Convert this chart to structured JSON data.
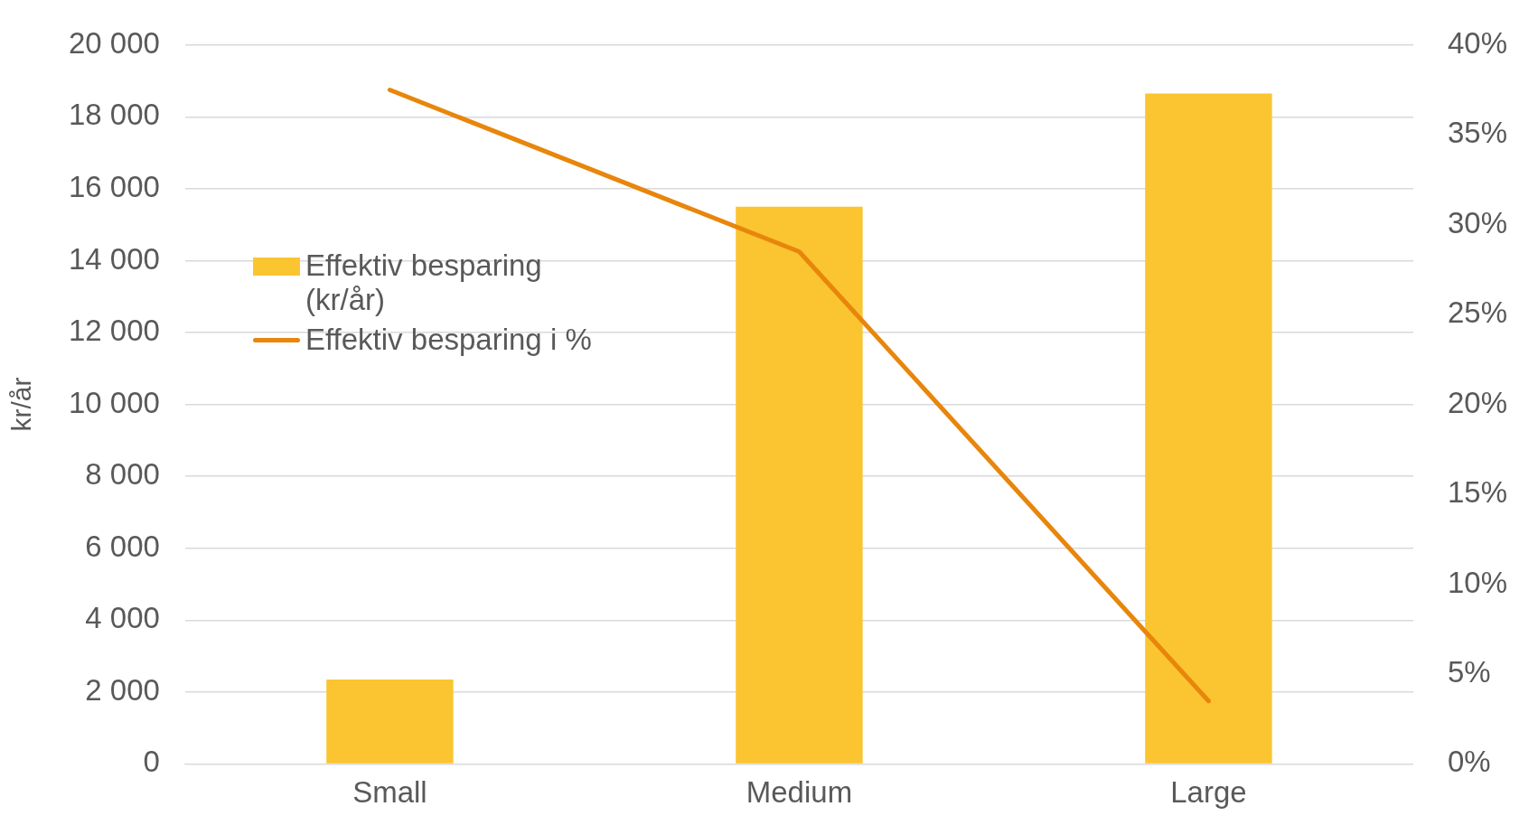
{
  "chart_data": {
    "type": "bar",
    "ylabel": "kr/år",
    "categories": [
      "Small",
      "Medium",
      "Large"
    ],
    "series": [
      {
        "name": "Effektiv besparing (kr/år)",
        "color": "#fbc531",
        "values": [
          2350,
          15500,
          18650
        ]
      },
      {
        "name": "Effektiv besparing i %",
        "type": "line",
        "axis": "y2",
        "color": "#e8860c",
        "values": [
          37.5,
          28.5,
          3.5
        ]
      }
    ],
    "ylim": [
      0,
      20000
    ],
    "yticks": [
      {
        "value": 0,
        "label": "0"
      },
      {
        "value": 2000,
        "label": "2 000"
      },
      {
        "value": 4000,
        "label": "4 000"
      },
      {
        "value": 6000,
        "label": "6 000"
      },
      {
        "value": 8000,
        "label": "8 000"
      },
      {
        "value": 10000,
        "label": "10 000"
      },
      {
        "value": 12000,
        "label": "12 000"
      },
      {
        "value": 14000,
        "label": "14 000"
      },
      {
        "value": 16000,
        "label": "16 000"
      },
      {
        "value": 18000,
        "label": "18 000"
      },
      {
        "value": 20000,
        "label": "20 000"
      }
    ],
    "y2lim": [
      0,
      40
    ],
    "y2ticks": [
      {
        "value": 0,
        "label": "0%"
      },
      {
        "value": 5,
        "label": "5%"
      },
      {
        "value": 10,
        "label": "10%"
      },
      {
        "value": 15,
        "label": "15%"
      },
      {
        "value": 20,
        "label": "20%"
      },
      {
        "value": 25,
        "label": "25%"
      },
      {
        "value": 30,
        "label": "30%"
      },
      {
        "value": 35,
        "label": "35%"
      },
      {
        "value": 40,
        "label": "40%"
      }
    ],
    "grid": "y",
    "legend": "left",
    "marker": "none"
  }
}
